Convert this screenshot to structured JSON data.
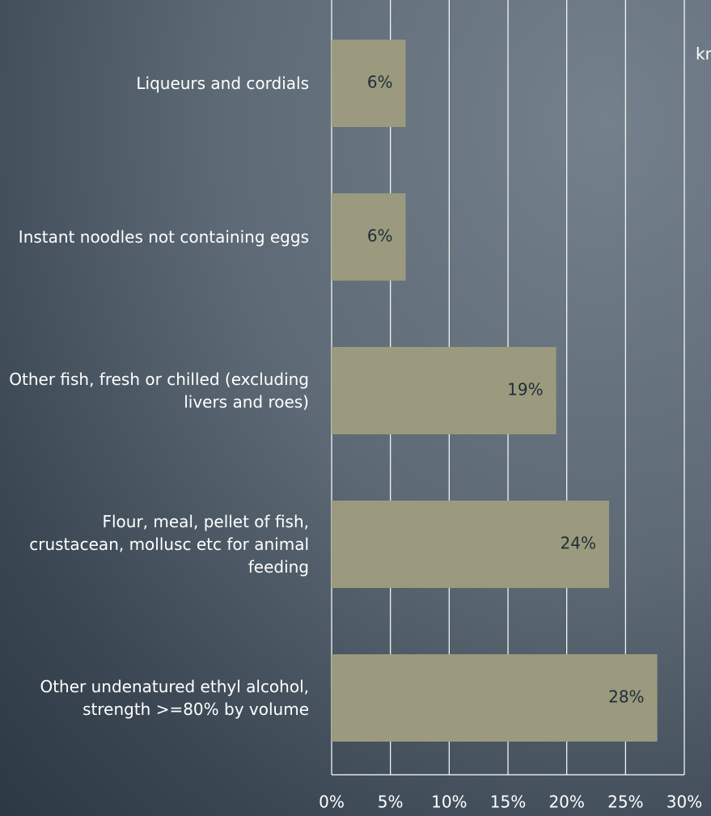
{
  "chart_data": {
    "type": "barh",
    "categories": [
      "Liqueurs and cordials",
      "Instant noodles not containing eggs",
      "Other fish, fresh or chilled (excluding livers and roes)",
      "Flour, meal, pellet of fish, crustacean, mollusc etc for animal feeding",
      "Other undenatured ethyl alcohol, strength >=80% by volume"
    ],
    "values": [
      6.3,
      6.3,
      19.1,
      23.6,
      27.7
    ],
    "value_labels": [
      "6%",
      "6%",
      "19%",
      "24%",
      "28%"
    ],
    "color": "#9b9a7e",
    "xlim": [
      0,
      30
    ],
    "xticks": [
      {
        "value": 0,
        "label": "0%"
      },
      {
        "value": 5,
        "label": "5%"
      },
      {
        "value": 10,
        "label": "10%"
      },
      {
        "value": 15,
        "label": "15%"
      },
      {
        "value": 20,
        "label": "20%"
      },
      {
        "value": 25,
        "label": "25%"
      },
      {
        "value": 30,
        "label": "30%"
      }
    ],
    "grid": true,
    "annotations": [
      "kn"
    ]
  }
}
